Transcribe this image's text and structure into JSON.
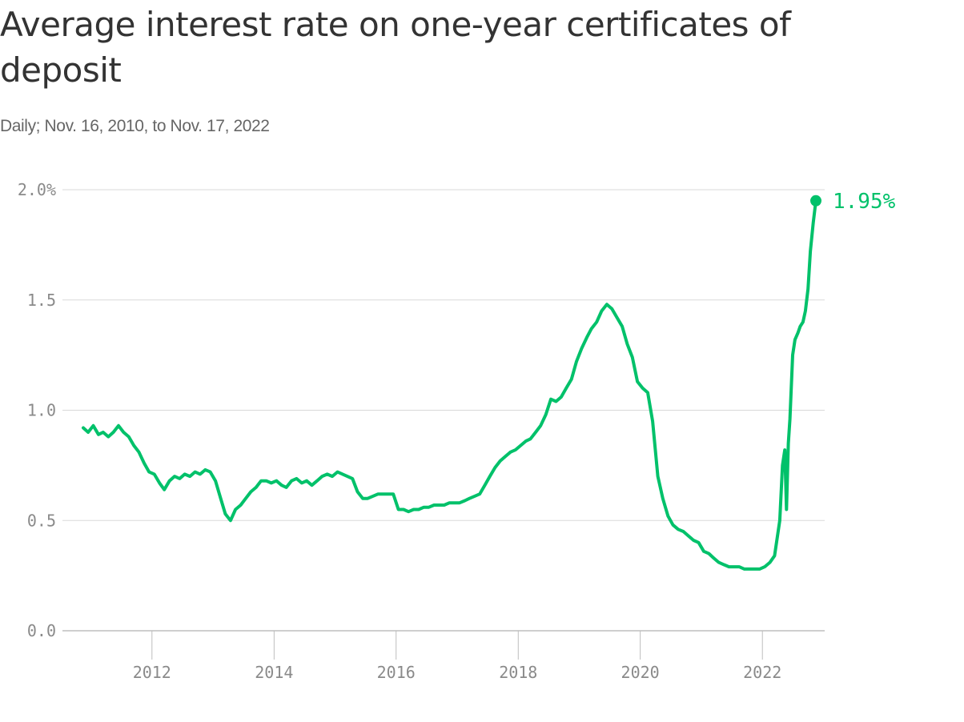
{
  "title": "Average interest rate on one-year certificates of deposit",
  "subtitle": "Daily; Nov. 16, 2010, to Nov. 17, 2022",
  "colors": {
    "line": "#00c16a",
    "grid": "#d9d9d9",
    "axis": "#bdbdbd",
    "tick_text": "#8a8a8a"
  },
  "chart_data": {
    "type": "line",
    "title": "Average interest rate on one-year certificates of deposit",
    "subtitle": "Daily; Nov. 16, 2010, to Nov. 17, 2022",
    "xlabel": "",
    "ylabel": "",
    "xlim": [
      "2010-11-16",
      "2022-11-17"
    ],
    "ylim": [
      0,
      2.0
    ],
    "y_ticks": [
      {
        "value": 2.0,
        "label": "2.0%"
      },
      {
        "value": 1.5,
        "label": "1.5"
      },
      {
        "value": 1.0,
        "label": "1.0"
      },
      {
        "value": 0.5,
        "label": "0.5"
      },
      {
        "value": 0.0,
        "label": "0.0"
      }
    ],
    "x_ticks": [
      "2012",
      "2014",
      "2016",
      "2018",
      "2020",
      "2022"
    ],
    "grid": "horizontal",
    "end_label": "1.95%",
    "series": [
      {
        "x": [
          "2010-11-16",
          "2010-12-15",
          "2011-01-15",
          "2011-02-15",
          "2011-03-15",
          "2011-04-15",
          "2011-05-15",
          "2011-06-15",
          "2011-07-15",
          "2011-08-15",
          "2011-09-15",
          "2011-10-15",
          "2011-11-15",
          "2011-12-15",
          "2012-01-15",
          "2012-02-15",
          "2012-03-15",
          "2012-04-15",
          "2012-05-15",
          "2012-06-15",
          "2012-07-15",
          "2012-08-15",
          "2012-09-15",
          "2012-10-15",
          "2012-11-15",
          "2012-12-15",
          "2013-01-15",
          "2013-02-15",
          "2013-03-15",
          "2013-04-15",
          "2013-05-15",
          "2013-06-15",
          "2013-07-15",
          "2013-08-15",
          "2013-09-15",
          "2013-10-15",
          "2013-11-15",
          "2013-12-15",
          "2014-01-15",
          "2014-02-15",
          "2014-03-15",
          "2014-04-15",
          "2014-05-15",
          "2014-06-15",
          "2014-07-15",
          "2014-08-15",
          "2014-09-15",
          "2014-10-15",
          "2014-11-15",
          "2014-12-15",
          "2015-01-15",
          "2015-02-15",
          "2015-03-15",
          "2015-04-15",
          "2015-05-15",
          "2015-06-15",
          "2015-07-15",
          "2015-08-15",
          "2015-09-15",
          "2015-10-15",
          "2015-11-15",
          "2015-12-15",
          "2016-01-15",
          "2016-02-15",
          "2016-03-15",
          "2016-04-15",
          "2016-05-15",
          "2016-06-15",
          "2016-07-15",
          "2016-08-15",
          "2016-09-15",
          "2016-10-15",
          "2016-11-15",
          "2016-12-15",
          "2017-01-15",
          "2017-02-15",
          "2017-03-15",
          "2017-04-15",
          "2017-05-15",
          "2017-06-15",
          "2017-07-15",
          "2017-08-15",
          "2017-09-15",
          "2017-10-15",
          "2017-11-15",
          "2017-12-15",
          "2018-01-15",
          "2018-02-15",
          "2018-03-15",
          "2018-04-15",
          "2018-05-15",
          "2018-06-15",
          "2018-07-15",
          "2018-08-15",
          "2018-09-15",
          "2018-10-15",
          "2018-11-15",
          "2018-12-15",
          "2019-01-15",
          "2019-02-15",
          "2019-03-15",
          "2019-04-15",
          "2019-05-15",
          "2019-06-15",
          "2019-07-15",
          "2019-08-15",
          "2019-09-15",
          "2019-10-15",
          "2019-11-15",
          "2019-12-15",
          "2020-01-15",
          "2020-02-15",
          "2020-03-15",
          "2020-04-15",
          "2020-05-15",
          "2020-06-15",
          "2020-07-15",
          "2020-08-15",
          "2020-09-15",
          "2020-10-15",
          "2020-11-15",
          "2020-12-15",
          "2021-01-15",
          "2021-02-15",
          "2021-03-15",
          "2021-04-15",
          "2021-05-15",
          "2021-06-15",
          "2021-07-15",
          "2021-08-15",
          "2021-09-15",
          "2021-10-15",
          "2021-11-15",
          "2021-12-15",
          "2022-01-15",
          "2022-02-15",
          "2022-03-15",
          "2022-04-15",
          "2022-05-01",
          "2022-05-15",
          "2022-05-25",
          "2022-06-05",
          "2022-06-15",
          "2022-07-01",
          "2022-07-15",
          "2022-08-01",
          "2022-08-15",
          "2022-09-01",
          "2022-09-15",
          "2022-10-01",
          "2022-10-15",
          "2022-11-01",
          "2022-11-17"
        ],
        "values": [
          0.92,
          0.9,
          0.93,
          0.89,
          0.9,
          0.88,
          0.9,
          0.93,
          0.9,
          0.88,
          0.84,
          0.81,
          0.76,
          0.72,
          0.71,
          0.67,
          0.64,
          0.68,
          0.7,
          0.69,
          0.71,
          0.7,
          0.72,
          0.71,
          0.73,
          0.72,
          0.68,
          0.6,
          0.53,
          0.5,
          0.55,
          0.57,
          0.6,
          0.63,
          0.65,
          0.68,
          0.68,
          0.67,
          0.68,
          0.66,
          0.65,
          0.68,
          0.69,
          0.67,
          0.68,
          0.66,
          0.68,
          0.7,
          0.71,
          0.7,
          0.72,
          0.71,
          0.7,
          0.69,
          0.63,
          0.6,
          0.6,
          0.61,
          0.62,
          0.62,
          0.62,
          0.62,
          0.55,
          0.55,
          0.54,
          0.55,
          0.55,
          0.56,
          0.56,
          0.57,
          0.57,
          0.57,
          0.58,
          0.58,
          0.58,
          0.59,
          0.6,
          0.61,
          0.62,
          0.66,
          0.7,
          0.74,
          0.77,
          0.79,
          0.81,
          0.82,
          0.84,
          0.86,
          0.87,
          0.9,
          0.93,
          0.98,
          1.05,
          1.04,
          1.06,
          1.1,
          1.14,
          1.22,
          1.28,
          1.33,
          1.37,
          1.4,
          1.45,
          1.48,
          1.46,
          1.42,
          1.38,
          1.3,
          1.24,
          1.13,
          1.1,
          1.08,
          0.95,
          0.7,
          0.6,
          0.52,
          0.48,
          0.46,
          0.45,
          0.43,
          0.41,
          0.4,
          0.36,
          0.35,
          0.33,
          0.31,
          0.3,
          0.29,
          0.29,
          0.29,
          0.28,
          0.28,
          0.28,
          0.28,
          0.29,
          0.31,
          0.34,
          0.5,
          0.75,
          0.82,
          0.55,
          0.85,
          0.96,
          1.25,
          1.32,
          1.35,
          1.38,
          1.4,
          1.45,
          1.55,
          1.72,
          1.85,
          1.95
        ]
      }
    ]
  }
}
